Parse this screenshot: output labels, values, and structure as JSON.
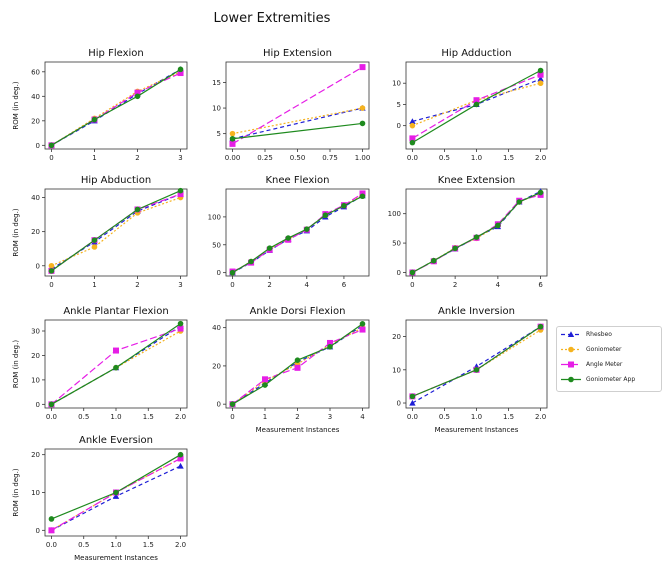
{
  "figure": {
    "title": "Lower Extremities"
  },
  "legend": {
    "entries": [
      {
        "name": "Rhesbeo",
        "color": "#1f1fd6",
        "dash": "4,3",
        "marker": "triangle"
      },
      {
        "name": "Goniometer",
        "color": "#f5b31f",
        "dash": "2,2",
        "marker": "circle"
      },
      {
        "name": "Angle Meter",
        "color": "#e61ee6",
        "dash": "7,3",
        "marker": "square"
      },
      {
        "name": "Goniometer App",
        "color": "#1e8a1e",
        "dash": "",
        "marker": "circle"
      }
    ]
  },
  "chart_data": [
    {
      "type": "line",
      "title": "Hip Flexion",
      "ylabel": "ROM (in deg.)",
      "xlabel": "",
      "xlim": [
        -0.15,
        3.15
      ],
      "ylim": [
        -3,
        68
      ],
      "xticks": [
        0,
        1,
        2,
        3
      ],
      "yticks": [
        0,
        20,
        40,
        60
      ],
      "x": [
        0,
        1,
        2,
        3
      ],
      "series": [
        {
          "values": [
            0,
            20,
            42,
            62
          ]
        },
        {
          "values": [
            0,
            22,
            44,
            60
          ]
        },
        {
          "values": [
            0,
            21,
            43,
            59
          ]
        },
        {
          "values": [
            0,
            21,
            40,
            62
          ]
        }
      ]
    },
    {
      "type": "line",
      "title": "Hip Extension",
      "ylabel": "",
      "xlabel": "",
      "xlim": [
        -0.05,
        1.05
      ],
      "ylim": [
        2,
        19
      ],
      "xticks": [
        0.0,
        0.25,
        0.5,
        0.75,
        1.0
      ],
      "yticks": [
        5,
        10,
        15
      ],
      "xtick_labels": [
        "0.00",
        "0.25",
        "0.50",
        "0.75",
        "1.00"
      ],
      "x": [
        0,
        1
      ],
      "series": [
        {
          "values": [
            4,
            10
          ]
        },
        {
          "values": [
            5,
            10
          ]
        },
        {
          "values": [
            3,
            18
          ]
        },
        {
          "values": [
            4,
            7
          ]
        }
      ]
    },
    {
      "type": "line",
      "title": "Hip Adduction",
      "ylabel": "",
      "xlabel": "",
      "xlim": [
        -0.1,
        2.1
      ],
      "ylim": [
        -5.5,
        15
      ],
      "xticks": [
        0.0,
        0.5,
        1.0,
        1.5,
        2.0
      ],
      "yticks": [
        0,
        5,
        10
      ],
      "xtick_labels": [
        "0.0",
        "0.5",
        "1.0",
        "1.5",
        "2.0"
      ],
      "x": [
        0,
        1,
        2
      ],
      "series": [
        {
          "values": [
            1,
            5,
            11
          ]
        },
        {
          "values": [
            0,
            6,
            10
          ]
        },
        {
          "values": [
            -3,
            6,
            12
          ]
        },
        {
          "values": [
            -4,
            5,
            13
          ]
        }
      ]
    },
    {
      "type": "line",
      "title": "Hip Abduction",
      "ylabel": "ROM (in deg.)",
      "xlabel": "",
      "xlim": [
        -0.15,
        3.15
      ],
      "ylim": [
        -6,
        45
      ],
      "xticks": [
        0,
        1,
        2,
        3
      ],
      "yticks": [
        0,
        20,
        40
      ],
      "x": [
        0,
        1,
        2,
        3
      ],
      "series": [
        {
          "values": [
            -2,
            14,
            32,
            42
          ]
        },
        {
          "values": [
            0,
            11,
            31,
            40
          ]
        },
        {
          "values": [
            -3,
            15,
            33,
            42
          ]
        },
        {
          "values": [
            -3,
            15,
            33,
            44
          ]
        }
      ]
    },
    {
      "type": "line",
      "title": "Knee Flexion",
      "ylabel": "",
      "xlabel": "",
      "xlim": [
        -0.35,
        7.35
      ],
      "ylim": [
        -6,
        150
      ],
      "xticks": [
        0,
        2,
        4,
        6
      ],
      "yticks": [
        0,
        50,
        100
      ],
      "x": [
        0,
        1,
        2,
        3,
        4,
        5,
        6,
        7
      ],
      "series": [
        {
          "values": [
            0,
            18,
            40,
            60,
            75,
            100,
            118,
            138
          ]
        },
        {
          "values": [
            0,
            20,
            43,
            60,
            78,
            103,
            120,
            140
          ]
        },
        {
          "values": [
            2,
            18,
            41,
            59,
            77,
            105,
            121,
            142
          ]
        },
        {
          "values": [
            0,
            20,
            44,
            62,
            78,
            103,
            120,
            137
          ]
        }
      ]
    },
    {
      "type": "line",
      "title": "Knee Extension",
      "ylabel": "",
      "xlabel": "",
      "xlim": [
        -0.3,
        6.3
      ],
      "ylim": [
        -6,
        142
      ],
      "xticks": [
        0,
        2,
        4,
        6
      ],
      "yticks": [
        0,
        50,
        100
      ],
      "x": [
        0,
        1,
        2,
        3,
        4,
        5,
        6
      ],
      "series": [
        {
          "values": [
            0,
            20,
            40,
            60,
            78,
            120,
            138
          ]
        },
        {
          "values": [
            0,
            20,
            42,
            58,
            80,
            120,
            135
          ]
        },
        {
          "values": [
            0,
            19,
            41,
            59,
            82,
            122,
            132
          ]
        },
        {
          "values": [
            0,
            20,
            41,
            60,
            80,
            120,
            136
          ]
        }
      ]
    },
    {
      "type": "line",
      "title": "Ankle Plantar Flexion",
      "ylabel": "ROM (in deg.)",
      "xlabel": "",
      "xlim": [
        -0.1,
        2.1
      ],
      "ylim": [
        -1.5,
        34.5
      ],
      "xticks": [
        0.0,
        0.5,
        1.0,
        1.5,
        2.0
      ],
      "yticks": [
        0,
        10,
        20,
        30
      ],
      "xtick_labels": [
        "0.0",
        "0.5",
        "1.0",
        "1.5",
        "2.0"
      ],
      "x": [
        0,
        1,
        2
      ],
      "series": [
        {
          "values": [
            0,
            15,
            32
          ]
        },
        {
          "values": [
            0,
            15,
            30
          ]
        },
        {
          "values": [
            0,
            22,
            31
          ]
        },
        {
          "values": [
            0,
            15,
            33
          ]
        }
      ]
    },
    {
      "type": "line",
      "title": "Ankle Dorsi Flexion",
      "ylabel": "",
      "xlabel": "Measurement Instances",
      "xlim": [
        -0.2,
        4.2
      ],
      "ylim": [
        -2,
        44
      ],
      "xticks": [
        0,
        1,
        2,
        3,
        4
      ],
      "yticks": [
        0,
        20,
        40
      ],
      "x": [
        0,
        1,
        2,
        3,
        4
      ],
      "series": [
        {
          "values": [
            0,
            11,
            22,
            30,
            41
          ]
        },
        {
          "values": [
            0,
            12,
            21,
            31,
            40
          ]
        },
        {
          "values": [
            0,
            13,
            19,
            32,
            39
          ]
        },
        {
          "values": [
            0,
            10,
            23,
            30,
            42
          ]
        }
      ]
    },
    {
      "type": "line",
      "title": "Ankle Inversion",
      "ylabel": "",
      "xlabel": "Measurement Instances",
      "xlim": [
        -0.1,
        2.1
      ],
      "ylim": [
        -1.5,
        25
      ],
      "xticks": [
        0.0,
        0.5,
        1.0,
        1.5,
        2.0
      ],
      "yticks": [
        0,
        10,
        20
      ],
      "xtick_labels": [
        "0.0",
        "0.5",
        "1.0",
        "1.5",
        "2.0"
      ],
      "x": [
        0,
        1,
        2
      ],
      "series": [
        {
          "values": [
            0,
            11,
            23
          ]
        },
        {
          "values": [
            2,
            10,
            22
          ]
        },
        {
          "values": [
            2,
            10,
            23
          ]
        },
        {
          "values": [
            2,
            10,
            23
          ]
        }
      ]
    },
    {
      "type": "line",
      "title": "Ankle Eversion",
      "ylabel": "ROM (in deg.)",
      "xlabel": "Measurement Instances",
      "xlim": [
        -0.1,
        2.1
      ],
      "ylim": [
        -1.5,
        21.5
      ],
      "xticks": [
        0.0,
        0.5,
        1.0,
        1.5,
        2.0
      ],
      "yticks": [
        0,
        10,
        20
      ],
      "xtick_labels": [
        "0.0",
        "0.5",
        "1.0",
        "1.5",
        "2.0"
      ],
      "x": [
        0,
        1,
        2
      ],
      "series": [
        {
          "values": [
            0,
            9,
            17
          ]
        },
        {
          "values": [
            0,
            10,
            19
          ]
        },
        {
          "values": [
            0,
            10,
            19
          ]
        },
        {
          "values": [
            3,
            10,
            20
          ]
        }
      ]
    }
  ]
}
